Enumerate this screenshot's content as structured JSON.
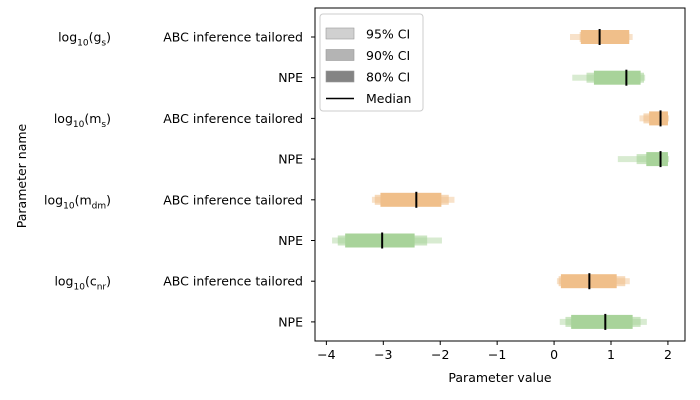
{
  "chart_data": {
    "type": "interval",
    "xlabel": "Parameter value",
    "ylabel": "Parameter name",
    "xlim": [
      -4.2,
      2.3
    ],
    "xticks": [
      "-4",
      "-3",
      "-2",
      "-1",
      "0",
      "1",
      "2"
    ],
    "xtick_values": [
      -4,
      -3,
      -2,
      -1,
      0,
      1,
      2
    ],
    "colors": {
      "abc": "#f0bf8a",
      "npe": "#a8d39a",
      "median": "#000000"
    },
    "parameters": [
      {
        "label": "log₁₀(gₛ)",
        "label_base": "log",
        "label_sub": "10",
        "label_arg": "g",
        "label_arg_sub": "s",
        "methods": [
          {
            "name": "ABC inference tailored",
            "color_key": "abc",
            "ci95": [
              0.28,
              1.38
            ],
            "ci90": [
              0.45,
              1.32
            ],
            "ci80": [
              0.47,
              1.32
            ],
            "median": 0.8
          },
          {
            "name": "NPE",
            "color_key": "npe",
            "ci95": [
              0.32,
              1.6
            ],
            "ci90": [
              0.57,
              1.58
            ],
            "ci80": [
              0.7,
              1.52
            ],
            "median": 1.27
          }
        ]
      },
      {
        "label": "log₁₀(mₛ)",
        "label_base": "log",
        "label_sub": "10",
        "label_arg": "m",
        "label_arg_sub": "s",
        "methods": [
          {
            "name": "ABC inference tailored",
            "color_key": "abc",
            "ci95": [
              1.5,
              2.02
            ],
            "ci90": [
              1.57,
              2.0
            ],
            "ci80": [
              1.67,
              2.0
            ],
            "median": 1.87
          },
          {
            "name": "NPE",
            "color_key": "npe",
            "ci95": [
              1.12,
              2.02
            ],
            "ci90": [
              1.45,
              2.0
            ],
            "ci80": [
              1.62,
              2.0
            ],
            "median": 1.87
          }
        ]
      },
      {
        "label": "log₁₀(m_dm)",
        "label_base": "log",
        "label_sub": "10",
        "label_arg": "m",
        "label_arg_sub": "dm",
        "methods": [
          {
            "name": "ABC inference tailored",
            "color_key": "abc",
            "ci95": [
              -3.2,
              -1.75
            ],
            "ci90": [
              -3.15,
              -1.85
            ],
            "ci80": [
              -3.05,
              -1.98
            ],
            "median": -2.42
          },
          {
            "name": "NPE",
            "color_key": "npe",
            "ci95": [
              -3.9,
              -1.97
            ],
            "ci90": [
              -3.8,
              -2.23
            ],
            "ci80": [
              -3.67,
              -2.45
            ],
            "median": -3.02
          }
        ]
      },
      {
        "label": "log₁₀(c_nr)",
        "label_base": "log",
        "label_sub": "10",
        "label_arg": "c",
        "label_arg_sub": "nr",
        "methods": [
          {
            "name": "ABC inference tailored",
            "color_key": "abc",
            "ci95": [
              0.05,
              1.33
            ],
            "ci90": [
              0.08,
              1.25
            ],
            "ci80": [
              0.12,
              1.1
            ],
            "median": 0.62
          },
          {
            "name": "NPE",
            "color_key": "npe",
            "ci95": [
              0.1,
              1.63
            ],
            "ci90": [
              0.2,
              1.52
            ],
            "ci80": [
              0.3,
              1.38
            ],
            "median": 0.9
          }
        ]
      }
    ],
    "legend": {
      "placement": "top-left",
      "entries": [
        {
          "label": "95% CI",
          "kind": "patch",
          "alpha": 0.35
        },
        {
          "label": "90% CI",
          "kind": "patch",
          "alpha": 0.55
        },
        {
          "label": "80% CI",
          "kind": "patch",
          "alpha": 0.9
        },
        {
          "label": "Median",
          "kind": "line"
        }
      ]
    }
  }
}
